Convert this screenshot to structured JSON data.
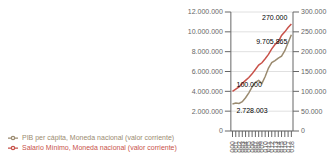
{
  "chart_data": {
    "type": "line",
    "x": [
      2000,
      2001,
      2002,
      2003,
      2004,
      2005,
      2006,
      2007,
      2008,
      2009,
      2010,
      2011,
      2012,
      2013,
      2014,
      2015,
      2016,
      2017,
      2018
    ],
    "xlim": [
      1999.5,
      2018.5
    ],
    "xticks": [
      2000,
      2001,
      2002,
      2003,
      2004,
      2005,
      2006,
      2007,
      2008,
      2009,
      2010,
      2011,
      2012,
      2013,
      2014,
      2015,
      2016,
      2017,
      2018
    ],
    "ylim": [
      0,
      12000000
    ],
    "yticks": [
      0,
      {
        "value": 2000000,
        "label": "2.000.000"
      },
      {
        "value": 4000000,
        "label": "4.000.000"
      },
      {
        "value": 6000000,
        "label": "6.000.000"
      },
      {
        "value": 8000000,
        "label": "8.000.000"
      },
      {
        "value": 10000000,
        "label": "10.000.000"
      },
      {
        "value": 12000000,
        "label": "12.000.000"
      }
    ],
    "y2lim": [
      0,
      300000
    ],
    "y2ticks": [
      0,
      {
        "value": 50000,
        "label": "50.000"
      },
      {
        "value": 100000,
        "label": "100.000"
      },
      {
        "value": 150000,
        "label": "150.000"
      },
      {
        "value": 200000,
        "label": "200.000"
      },
      {
        "value": 250000,
        "label": "250.000"
      },
      {
        "value": 300000,
        "label": "300.000"
      }
    ],
    "series": [
      {
        "name": "PIB per cápita, Moneda nacional (valor corriente)",
        "color": "#9B8B70",
        "values": [
          2728003,
          2820000,
          2780000,
          2950000,
          3350000,
          3850000,
          4450000,
          4900000,
          5100000,
          4800000,
          5500000,
          6350000,
          6900000,
          7100000,
          7350000,
          7550000,
          8100000,
          8900000,
          9705865
        ]
      },
      {
        "name": "Salario Mínimo, Moneda nacional (valor corriente)",
        "color": "#C8524A",
        "values": [
          100000,
          105500,
          111200,
          120000,
          127500,
          135000,
          144000,
          155000,
          166000,
          172000,
          182000,
          193000,
          207000,
          218000,
          225000,
          241000,
          250000,
          261000,
          270000
        ],
        "axis": "y2"
      }
    ],
    "grid": true,
    "legend": "bottom",
    "annotations": [
      {
        "text": "2.728.003",
        "x": 2000,
        "y": 2728003,
        "axis": "y"
      },
      {
        "text": "100.000",
        "x": 2000,
        "y": 100000,
        "axis": "y2"
      },
      {
        "text": "9.705.865",
        "x": 2018,
        "y": 9705865,
        "axis": "y"
      },
      {
        "text": "270.000",
        "x": 2018,
        "y": 270000,
        "axis": "y2"
      }
    ]
  }
}
